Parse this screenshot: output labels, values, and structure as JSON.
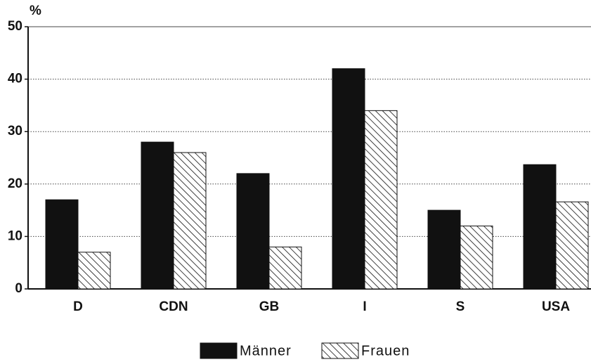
{
  "chart_data": {
    "type": "bar",
    "y_label": "%",
    "categories": [
      "D",
      "CDN",
      "GB",
      "I",
      "S",
      "USA"
    ],
    "series": [
      {
        "name": "Männer",
        "color": "#111111",
        "pattern": "solid",
        "values": [
          17,
          28,
          22,
          42,
          15,
          23.7
        ]
      },
      {
        "name": "Frauen",
        "color": "#111111",
        "pattern": "hatch",
        "values": [
          7,
          26,
          8,
          34,
          12,
          16.6
        ]
      }
    ],
    "ylim": [
      0,
      50
    ],
    "yticks": [
      0,
      10,
      20,
      30,
      40,
      50
    ],
    "grid": true
  }
}
